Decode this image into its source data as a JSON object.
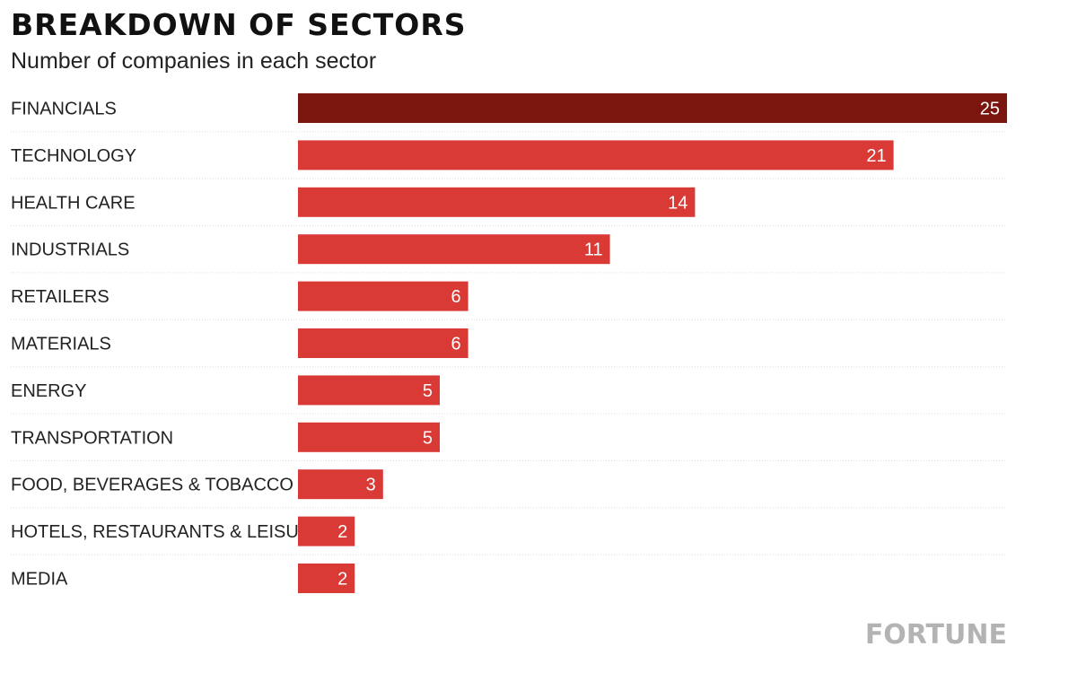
{
  "header": {
    "title": "BREAKDOWN OF SECTORS",
    "subtitle": "Number of companies in each sector"
  },
  "brand": "FORTUNE",
  "colors": {
    "highlight_bar": "#7a160e",
    "bar": "#d93a35",
    "divider": "#dddddd",
    "value_text": "#ffffff",
    "brand_text": "#b3b3b3"
  },
  "chart_data": {
    "type": "bar",
    "orientation": "horizontal",
    "title": "BREAKDOWN OF SECTORS",
    "subtitle": "Number of companies in each sector",
    "categories": [
      "FINANCIALS",
      "TECHNOLOGY",
      "HEALTH CARE",
      "INDUSTRIALS",
      "RETAILERS",
      "MATERIALS",
      "ENERGY",
      "TRANSPORTATION",
      "FOOD, BEVERAGES & TOBACCO",
      "HOTELS, RESTAURANTS & LEISURE",
      "MEDIA"
    ],
    "values": [
      25,
      21,
      14,
      11,
      6,
      6,
      5,
      5,
      3,
      2,
      2
    ],
    "highlighted_category": "FINANCIALS",
    "xlim": [
      0,
      25
    ],
    "grid": false,
    "data_labels": true
  }
}
